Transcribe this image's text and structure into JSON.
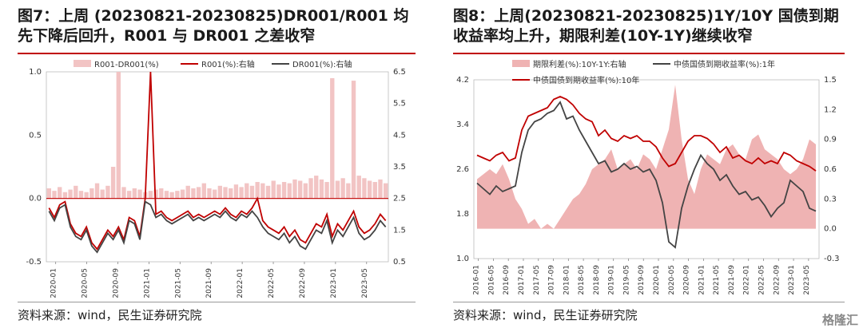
{
  "left": {
    "title_line1": "图7：上周 (20230821-20230825)DR001/R001  均",
    "title_line2": "先下降后回升，R001 与 DR001 之差收窄",
    "source": "资料来源：wind，民生证券研究院",
    "legend": [
      "R001-DR001(%)",
      "R001(%):右轴",
      "DR001(%):右轴"
    ]
  },
  "right": {
    "title_line1": "图8：上周(20230821-20230825)1Y/10Y  国债到期",
    "title_line2": "收益率均上升，期限利差(10Y-1Y)继续收窄",
    "source": "资料来源：wind，民生证券研究院",
    "legend": [
      "期限利差(%):10Y-1Y:右轴",
      "中债国债到期收益率(%):1年",
      "中债国债到期收益率(%):10年"
    ]
  },
  "watermark": "格隆汇",
  "colors": {
    "red": "#c00000",
    "dark": "#444444",
    "spread_left": "#f2c4c4",
    "spread_right": "#efb3b3",
    "accent_rule": "#c00000"
  },
  "chart_data": [
    {
      "type": "line",
      "title": "",
      "x_ticks": [
        "2020-01",
        "2020-05",
        "2020-09",
        "2021-01",
        "2021-05",
        "2021-09",
        "2022-01",
        "2022-05",
        "2022-09",
        "2023-01",
        "2023-05"
      ],
      "y_left_ticks": [
        "1.0",
        "0.5",
        "0.0",
        "-0.5"
      ],
      "y_right_ticks": [
        "6.5",
        "5.5",
        "4.5",
        "3.5",
        "2.5",
        "1.5",
        "0.5"
      ],
      "ylim_left": [
        -0.5,
        1.0
      ],
      "ylim_right": [
        0.5,
        6.5
      ],
      "zero_line": 0.0,
      "series": [
        {
          "name": "R001-DR001(%)",
          "axis": "left",
          "kind": "bar",
          "values": [
            0.08,
            0.06,
            0.09,
            0.05,
            0.07,
            0.1,
            0.06,
            0.05,
            0.08,
            0.12,
            0.07,
            0.1,
            0.25,
            1.0,
            0.09,
            0.06,
            0.08,
            0.07,
            0.05,
            0.06,
            0.07,
            0.08,
            0.06,
            0.05,
            0.06,
            0.07,
            0.1,
            0.08,
            0.09,
            0.12,
            0.08,
            0.07,
            0.1,
            0.09,
            0.08,
            0.11,
            0.09,
            0.12,
            0.1,
            0.13,
            0.12,
            0.1,
            0.14,
            0.11,
            0.13,
            0.12,
            0.15,
            0.14,
            0.12,
            0.16,
            0.18,
            0.15,
            0.13,
            0.95,
            0.14,
            0.16,
            0.12,
            0.93,
            0.18,
            0.16,
            0.14,
            0.13,
            0.15,
            0.12
          ]
        },
        {
          "name": "R001(%):右轴",
          "axis": "right",
          "kind": "line",
          "values": [
            2.2,
            1.9,
            2.3,
            2.4,
            1.7,
            1.4,
            1.3,
            1.6,
            1.1,
            0.9,
            1.2,
            1.5,
            1.3,
            1.6,
            1.2,
            1.9,
            1.8,
            1.3,
            2.5,
            6.5,
            2.0,
            2.1,
            1.9,
            1.8,
            1.9,
            2.0,
            2.1,
            1.9,
            2.0,
            1.9,
            2.0,
            2.1,
            2.0,
            2.2,
            2.0,
            1.9,
            2.1,
            2.0,
            2.2,
            2.5,
            1.8,
            1.6,
            1.5,
            1.4,
            1.6,
            1.3,
            1.5,
            1.2,
            1.1,
            1.4,
            1.7,
            1.6,
            2.0,
            1.3,
            1.7,
            1.5,
            1.8,
            2.1,
            1.6,
            1.4,
            1.5,
            1.7,
            2.0,
            1.8
          ]
        },
        {
          "name": "DR001(%):右轴",
          "axis": "right",
          "kind": "line",
          "values": [
            2.1,
            1.8,
            2.2,
            2.3,
            1.6,
            1.3,
            1.2,
            1.5,
            1.0,
            0.8,
            1.1,
            1.4,
            1.2,
            1.5,
            1.1,
            1.8,
            1.7,
            1.2,
            2.4,
            2.3,
            1.9,
            2.0,
            1.8,
            1.7,
            1.8,
            1.9,
            2.0,
            1.8,
            1.9,
            1.8,
            1.9,
            2.0,
            1.9,
            2.1,
            1.9,
            1.8,
            2.0,
            1.9,
            2.1,
            1.9,
            1.6,
            1.4,
            1.3,
            1.2,
            1.4,
            1.1,
            1.3,
            1.0,
            0.9,
            1.2,
            1.5,
            1.4,
            1.8,
            1.1,
            1.5,
            1.3,
            1.6,
            1.9,
            1.4,
            1.2,
            1.3,
            1.5,
            1.8,
            1.6
          ]
        }
      ]
    },
    {
      "type": "line",
      "title": "",
      "x_ticks": [
        "2016-01",
        "2016-05",
        "2016-09",
        "2017-01",
        "2017-05",
        "2017-09",
        "2018-01",
        "2018-05",
        "2018-09",
        "2019-01",
        "2019-05",
        "2019-09",
        "2020-01",
        "2020-05",
        "2020-09",
        "2021-01",
        "2021-05",
        "2021-09",
        "2022-01",
        "2022-05",
        "2022-09",
        "2023-01",
        "2023-05"
      ],
      "y_left_ticks": [
        "4.2",
        "3.4",
        "2.6",
        "1.8",
        "1.0"
      ],
      "y_right_ticks": [
        "1.5",
        "1.2",
        "0.9",
        "0.6",
        "0.3",
        "0.0",
        "-0.3"
      ],
      "ylim_left": [
        1.0,
        4.2
      ],
      "ylim_right": [
        -0.3,
        1.5
      ],
      "series": [
        {
          "name": "期限利差(%):10Y-1Y:右轴",
          "axis": "right",
          "kind": "area",
          "values": [
            0.5,
            0.55,
            0.6,
            0.55,
            0.65,
            0.5,
            0.3,
            0.2,
            0.05,
            0.1,
            0.0,
            0.05,
            0.0,
            0.1,
            0.2,
            0.3,
            0.35,
            0.45,
            0.6,
            0.65,
            0.7,
            0.8,
            0.6,
            0.65,
            0.7,
            0.6,
            0.75,
            0.7,
            0.6,
            0.8,
            1.0,
            1.45,
            0.9,
            0.5,
            0.35,
            0.6,
            0.75,
            0.7,
            0.65,
            0.8,
            0.85,
            0.75,
            0.7,
            0.9,
            0.95,
            0.8,
            0.75,
            0.7,
            0.6,
            0.55,
            0.6,
            0.7,
            0.9,
            0.85
          ]
        },
        {
          "name": "中债国债到期收益率(%):1年",
          "axis": "left",
          "kind": "line",
          "values": [
            2.35,
            2.25,
            2.15,
            2.3,
            2.2,
            2.25,
            2.3,
            2.9,
            3.3,
            3.45,
            3.5,
            3.6,
            3.65,
            3.8,
            3.5,
            3.55,
            3.3,
            3.1,
            2.9,
            2.7,
            2.75,
            2.55,
            2.6,
            2.7,
            2.6,
            2.65,
            2.55,
            2.6,
            2.4,
            2.0,
            1.3,
            1.2,
            1.9,
            2.3,
            2.6,
            2.85,
            2.7,
            2.6,
            2.4,
            2.5,
            2.3,
            2.15,
            2.2,
            2.05,
            2.1,
            1.95,
            1.75,
            1.9,
            2.0,
            2.4,
            2.3,
            2.2,
            1.9,
            1.85
          ]
        },
        {
          "name": "中债国债到期收益率(%):10年",
          "axis": "left",
          "kind": "line",
          "values": [
            2.85,
            2.8,
            2.75,
            2.85,
            2.9,
            2.75,
            2.8,
            3.3,
            3.55,
            3.6,
            3.65,
            3.7,
            3.85,
            3.9,
            3.85,
            3.75,
            3.6,
            3.5,
            3.45,
            3.2,
            3.3,
            3.15,
            3.1,
            3.2,
            3.15,
            3.2,
            3.1,
            3.1,
            3.0,
            2.8,
            2.65,
            2.7,
            2.9,
            3.1,
            3.2,
            3.2,
            3.15,
            3.05,
            2.9,
            3.0,
            2.8,
            2.85,
            2.75,
            2.7,
            2.8,
            2.7,
            2.75,
            2.7,
            2.9,
            2.85,
            2.75,
            2.7,
            2.65,
            2.57
          ]
        }
      ]
    }
  ]
}
